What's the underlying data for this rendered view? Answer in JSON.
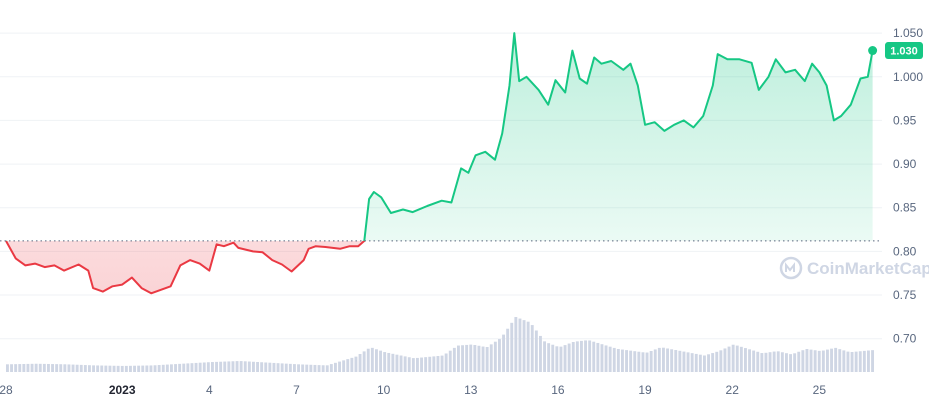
{
  "watermark": {
    "text": "CoinMarketCap",
    "color": "#cfd6e4"
  },
  "colors": {
    "up": "#16c784",
    "down": "#ea3943",
    "grid": "#eff2f5",
    "baseline": "#58667e",
    "volume_fill": "#cfd6e4",
    "tick_text": "#58667e"
  },
  "price_tag": {
    "label": "1.030",
    "value": 1.03
  },
  "chart_data": {
    "type": "area",
    "title": "",
    "xlabel": "",
    "ylabel": "",
    "ylim": [
      0.655,
      1.065
    ],
    "yticks": [
      "1.050",
      "1.000",
      "0.95",
      "0.90",
      "0.85",
      "0.80",
      "0.75",
      "0.70"
    ],
    "ytick_values": [
      1.05,
      1.0,
      0.95,
      0.9,
      0.85,
      0.8,
      0.75,
      0.7
    ],
    "baseline": 0.812,
    "grid": true,
    "x_range": [
      "2022-12-28",
      "2023-01-26"
    ],
    "xticks": [
      {
        "label": "28",
        "date": "2022-12-28",
        "bold": false
      },
      {
        "label": "2023",
        "date": "2023-01-01",
        "bold": true
      },
      {
        "label": "4",
        "date": "2023-01-04",
        "bold": false
      },
      {
        "label": "7",
        "date": "2023-01-07",
        "bold": false
      },
      {
        "label": "10",
        "date": "2023-01-10",
        "bold": false
      },
      {
        "label": "13",
        "date": "2023-01-13",
        "bold": false
      },
      {
        "label": "16",
        "date": "2023-01-16",
        "bold": false
      },
      {
        "label": "19",
        "date": "2023-01-19",
        "bold": false
      },
      {
        "label": "22",
        "date": "2023-01-22",
        "bold": false
      },
      {
        "label": "25",
        "date": "2023-01-25",
        "bold": false
      }
    ],
    "series": [
      {
        "kind": "price",
        "points": [
          [
            "2022-12-28 00:00",
            0.812
          ],
          [
            "2022-12-28 08:00",
            0.792
          ],
          [
            "2022-12-28 16:00",
            0.784
          ],
          [
            "2022-12-29 00:00",
            0.786
          ],
          [
            "2022-12-29 08:00",
            0.782
          ],
          [
            "2022-12-29 16:00",
            0.784
          ],
          [
            "2022-12-30 00:00",
            0.778
          ],
          [
            "2022-12-30 12:00",
            0.785
          ],
          [
            "2022-12-30 20:00",
            0.778
          ],
          [
            "2022-12-31 00:00",
            0.758
          ],
          [
            "2022-12-31 08:00",
            0.754
          ],
          [
            "2022-12-31 16:00",
            0.76
          ],
          [
            "2023-01-01 00:00",
            0.762
          ],
          [
            "2023-01-01 08:00",
            0.77
          ],
          [
            "2023-01-01 16:00",
            0.758
          ],
          [
            "2023-01-02 00:00",
            0.752
          ],
          [
            "2023-01-02 08:00",
            0.756
          ],
          [
            "2023-01-02 16:00",
            0.76
          ],
          [
            "2023-01-03 00:00",
            0.784
          ],
          [
            "2023-01-03 08:00",
            0.79
          ],
          [
            "2023-01-03 16:00",
            0.786
          ],
          [
            "2023-01-04 00:00",
            0.778
          ],
          [
            "2023-01-04 06:00",
            0.808
          ],
          [
            "2023-01-04 12:00",
            0.806
          ],
          [
            "2023-01-04 20:00",
            0.81
          ],
          [
            "2023-01-05 00:00",
            0.804
          ],
          [
            "2023-01-05 12:00",
            0.8
          ],
          [
            "2023-01-05 20:00",
            0.799
          ],
          [
            "2023-01-06 04:00",
            0.79
          ],
          [
            "2023-01-06 12:00",
            0.785
          ],
          [
            "2023-01-06 20:00",
            0.777
          ],
          [
            "2023-01-07 06:00",
            0.79
          ],
          [
            "2023-01-07 10:00",
            0.803
          ],
          [
            "2023-01-07 16:00",
            0.806
          ],
          [
            "2023-01-08 00:00",
            0.805
          ],
          [
            "2023-01-08 12:00",
            0.803
          ],
          [
            "2023-01-08 20:00",
            0.806
          ],
          [
            "2023-01-09 03:00",
            0.806
          ],
          [
            "2023-01-09 08:00",
            0.812
          ],
          [
            "2023-01-09 12:00",
            0.86
          ],
          [
            "2023-01-09 16:00",
            0.868
          ],
          [
            "2023-01-09 22:00",
            0.862
          ],
          [
            "2023-01-10 06:00",
            0.844
          ],
          [
            "2023-01-10 16:00",
            0.848
          ],
          [
            "2023-01-11 00:00",
            0.845
          ],
          [
            "2023-01-11 12:00",
            0.852
          ],
          [
            "2023-01-12 00:00",
            0.858
          ],
          [
            "2023-01-12 08:00",
            0.856
          ],
          [
            "2023-01-12 16:00",
            0.895
          ],
          [
            "2023-01-12 22:00",
            0.89
          ],
          [
            "2023-01-13 04:00",
            0.91
          ],
          [
            "2023-01-13 12:00",
            0.914
          ],
          [
            "2023-01-13 20:00",
            0.905
          ],
          [
            "2023-01-14 02:00",
            0.935
          ],
          [
            "2023-01-14 08:00",
            0.99
          ],
          [
            "2023-01-14 12:00",
            1.05
          ],
          [
            "2023-01-14 16:00",
            0.995
          ],
          [
            "2023-01-14 22:00",
            1.0
          ],
          [
            "2023-01-15 08:00",
            0.985
          ],
          [
            "2023-01-15 16:00",
            0.968
          ],
          [
            "2023-01-15 22:00",
            0.996
          ],
          [
            "2023-01-16 06:00",
            0.982
          ],
          [
            "2023-01-16 12:00",
            1.03
          ],
          [
            "2023-01-16 18:00",
            0.998
          ],
          [
            "2023-01-17 00:00",
            0.992
          ],
          [
            "2023-01-17 06:00",
            1.022
          ],
          [
            "2023-01-17 12:00",
            1.015
          ],
          [
            "2023-01-17 20:00",
            1.018
          ],
          [
            "2023-01-18 06:00",
            1.008
          ],
          [
            "2023-01-18 12:00",
            1.015
          ],
          [
            "2023-01-18 18:00",
            0.99
          ],
          [
            "2023-01-19 00:00",
            0.945
          ],
          [
            "2023-01-19 08:00",
            0.948
          ],
          [
            "2023-01-19 16:00",
            0.938
          ],
          [
            "2023-01-20 00:00",
            0.945
          ],
          [
            "2023-01-20 08:00",
            0.95
          ],
          [
            "2023-01-20 16:00",
            0.942
          ],
          [
            "2023-01-21 00:00",
            0.955
          ],
          [
            "2023-01-21 08:00",
            0.99
          ],
          [
            "2023-01-21 12:00",
            1.026
          ],
          [
            "2023-01-21 20:00",
            1.02
          ],
          [
            "2023-01-22 06:00",
            1.02
          ],
          [
            "2023-01-22 16:00",
            1.016
          ],
          [
            "2023-01-22 22:00",
            0.985
          ],
          [
            "2023-01-23 06:00",
            1.0
          ],
          [
            "2023-01-23 12:00",
            1.02
          ],
          [
            "2023-01-23 20:00",
            1.005
          ],
          [
            "2023-01-24 04:00",
            1.008
          ],
          [
            "2023-01-24 12:00",
            0.995
          ],
          [
            "2023-01-24 18:00",
            1.015
          ],
          [
            "2023-01-25 00:00",
            1.005
          ],
          [
            "2023-01-25 06:00",
            0.99
          ],
          [
            "2023-01-25 12:00",
            0.95
          ],
          [
            "2023-01-25 18:00",
            0.955
          ],
          [
            "2023-01-26 02:00",
            0.968
          ],
          [
            "2023-01-26 10:00",
            0.998
          ],
          [
            "2023-01-26 16:00",
            1.0
          ],
          [
            "2023-01-26 20:00",
            1.03
          ]
        ]
      },
      {
        "kind": "volume",
        "unit": "relative",
        "points": [
          [
            "2022-12-28",
            0.14
          ],
          [
            "2022-12-29",
            0.15
          ],
          [
            "2022-12-30",
            0.14
          ],
          [
            "2022-12-31",
            0.12
          ],
          [
            "2023-01-01",
            0.11
          ],
          [
            "2023-01-02",
            0.12
          ],
          [
            "2023-01-03",
            0.15
          ],
          [
            "2023-01-04",
            0.18
          ],
          [
            "2023-01-05",
            0.2
          ],
          [
            "2023-01-06",
            0.17
          ],
          [
            "2023-01-07",
            0.14
          ],
          [
            "2023-01-08",
            0.12
          ],
          [
            "2023-01-09",
            0.28
          ],
          [
            "2023-01-09 12:00",
            0.45
          ],
          [
            "2023-01-10",
            0.36
          ],
          [
            "2023-01-11",
            0.25
          ],
          [
            "2023-01-12",
            0.3
          ],
          [
            "2023-01-12 12:00",
            0.48
          ],
          [
            "2023-01-13",
            0.5
          ],
          [
            "2023-01-13 12:00",
            0.45
          ],
          [
            "2023-01-14",
            0.62
          ],
          [
            "2023-01-14 12:00",
            1.0
          ],
          [
            "2023-01-15",
            0.9
          ],
          [
            "2023-01-15 12:00",
            0.55
          ],
          [
            "2023-01-16",
            0.45
          ],
          [
            "2023-01-16 12:00",
            0.55
          ],
          [
            "2023-01-17",
            0.58
          ],
          [
            "2023-01-18",
            0.42
          ],
          [
            "2023-01-19",
            0.35
          ],
          [
            "2023-01-19 12:00",
            0.45
          ],
          [
            "2023-01-20",
            0.4
          ],
          [
            "2023-01-21",
            0.3
          ],
          [
            "2023-01-21 12:00",
            0.38
          ],
          [
            "2023-01-22",
            0.5
          ],
          [
            "2023-01-22 12:00",
            0.42
          ],
          [
            "2023-01-23",
            0.34
          ],
          [
            "2023-01-23 12:00",
            0.38
          ],
          [
            "2023-01-24",
            0.32
          ],
          [
            "2023-01-24 12:00",
            0.42
          ],
          [
            "2023-01-25",
            0.38
          ],
          [
            "2023-01-25 12:00",
            0.44
          ],
          [
            "2023-01-26",
            0.36
          ],
          [
            "2023-01-26 20:00",
            0.4
          ]
        ]
      }
    ]
  }
}
